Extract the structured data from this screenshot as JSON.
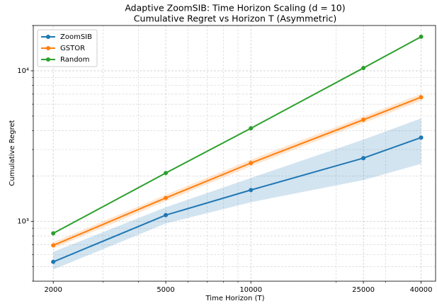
{
  "chart_data": {
    "type": "line",
    "title": "Adaptive ZoomSIB: Time Horizon Scaling (d = 10)",
    "subtitle": "Cumulative Regret vs Horizon T  (Asymmetric)",
    "x_label": "Time Horizon (T)",
    "y_label": "Cumulative Regret",
    "x": [
      2000,
      5000,
      10000,
      25000,
      40000
    ],
    "series": [
      {
        "name": "ZoomSIB",
        "color": "#1f77b4",
        "values": [
          538,
          1100,
          1614,
          2630,
          3600
        ],
        "lower": [
          478,
          968,
          1340,
          1880,
          2410
        ],
        "upper": [
          627,
          1240,
          1940,
          3490,
          4830
        ]
      },
      {
        "name": "GSTOR",
        "color": "#ff7f0e",
        "values": [
          692,
          1430,
          2440,
          4730,
          6680
        ],
        "lower": [
          660,
          1360,
          2320,
          4500,
          6340
        ],
        "upper": [
          725,
          1500,
          2570,
          4970,
          7020
        ]
      },
      {
        "name": "Random",
        "color": "#2ca02c",
        "values": [
          832,
          2093,
          4150,
          10440,
          16830
        ]
      }
    ],
    "xlim": [
      1700,
      45000
    ],
    "ylim": [
      400,
      20000
    ],
    "xticks": [
      2000,
      5000,
      10000,
      25000,
      40000
    ],
    "xminorticks": [
      3000,
      4000,
      6000,
      7000,
      8000,
      9000,
      20000,
      30000
    ],
    "yticks": [
      {
        "value": 1000,
        "label": "10³"
      },
      {
        "value": 10000,
        "label": "10⁴"
      }
    ],
    "yminorticks": [
      400,
      500,
      600,
      700,
      800,
      900,
      2000,
      3000,
      4000,
      5000,
      6000,
      7000,
      8000,
      9000,
      20000
    ],
    "xscale": "log",
    "yscale": "log",
    "grid": true,
    "legend": "upper left"
  }
}
